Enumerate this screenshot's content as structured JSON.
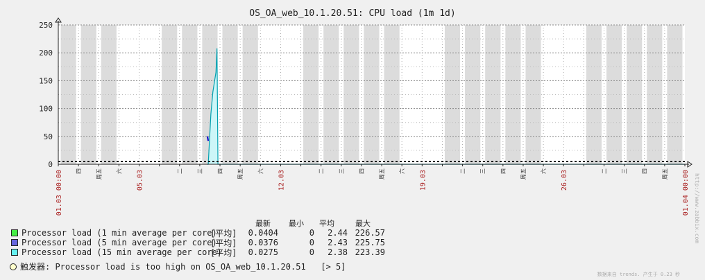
{
  "chart_data": {
    "type": "area",
    "title": "OS_OA_web_10.1.20.51: CPU load (1m 1d)",
    "ylim": [
      0,
      250
    ],
    "yticks": [
      0,
      50,
      100,
      150,
      200,
      250
    ],
    "xlim_days": 31,
    "x_date_labels": [
      {
        "day": 0,
        "text": "01.03 00:00"
      },
      {
        "day": 4,
        "text": "05.03"
      },
      {
        "day": 11,
        "text": "12.03"
      },
      {
        "day": 18,
        "text": "19.03"
      },
      {
        "day": 25,
        "text": "26.03"
      },
      {
        "day": 31,
        "text": "01.04 00:00"
      }
    ],
    "weekday_labels": [
      {
        "day": 1,
        "text": "四"
      },
      {
        "day": 2,
        "text": "周五"
      },
      {
        "day": 3,
        "text": "六"
      },
      {
        "day": 6,
        "text": "二"
      },
      {
        "day": 7,
        "text": "三"
      },
      {
        "day": 8,
        "text": "四"
      },
      {
        "day": 9,
        "text": "周五"
      },
      {
        "day": 10,
        "text": "六"
      },
      {
        "day": 13,
        "text": "二"
      },
      {
        "day": 14,
        "text": "三"
      },
      {
        "day": 15,
        "text": "四"
      },
      {
        "day": 16,
        "text": "周五"
      },
      {
        "day": 17,
        "text": "六"
      },
      {
        "day": 20,
        "text": "二"
      },
      {
        "day": 21,
        "text": "三"
      },
      {
        "day": 22,
        "text": "四"
      },
      {
        "day": 23,
        "text": "周五"
      },
      {
        "day": 24,
        "text": "六"
      },
      {
        "day": 27,
        "text": "二"
      },
      {
        "day": 28,
        "text": "三"
      },
      {
        "day": 29,
        "text": "四"
      },
      {
        "day": 30,
        "text": "周五"
      }
    ],
    "threshold": 5,
    "series": [
      {
        "name": "Processor load (1 min average per core)",
        "color": "#00c800",
        "x": [
          0,
          7.45,
          7.6,
          31
        ],
        "y": [
          0,
          0,
          0,
          0
        ]
      },
      {
        "name": "Processor load (5 min average per core)",
        "color": "#0000c8",
        "x": [
          7.38,
          7.42
        ],
        "y": [
          50,
          42
        ]
      },
      {
        "name": "Processor load (15 min average per core)",
        "color": "#00a0b0",
        "x": [
          7.35,
          7.42,
          7.55,
          7.65,
          7.8,
          7.85,
          7.9,
          31
        ],
        "y": [
          0,
          0,
          90,
          130,
          165,
          208,
          0,
          0
        ]
      }
    ]
  },
  "legend": {
    "headers": {
      "last": "最新",
      "min": "最小",
      "avg": "平均",
      "max": "最大"
    },
    "rows": [
      {
        "name": "Processor load (1 min average per core)",
        "func": "[平均]",
        "color": "#00c800",
        "last": "0.0404",
        "min": "0",
        "avg": "2.44",
        "max": "226.57"
      },
      {
        "name": "Processor load (5 min average per core)",
        "func": "[平均]",
        "color": "#0000c8",
        "last": "0.0376",
        "min": "0",
        "avg": "2.43",
        "max": "225.75"
      },
      {
        "name": "Processor load (15 min average per core)",
        "func": "[平均]",
        "color": "#00c8c8",
        "last": "0.0275",
        "min": "0",
        "avg": "2.38",
        "max": "223.39"
      }
    ],
    "trigger_label": "触发器: Processor load is too high on OS_OA_web_10.1.20.51",
    "trigger_value": "[> 5]",
    "footer_note": "数据来自 trends. 产生于 0.23 秒",
    "watermark": "http://www.zabbix.com"
  }
}
